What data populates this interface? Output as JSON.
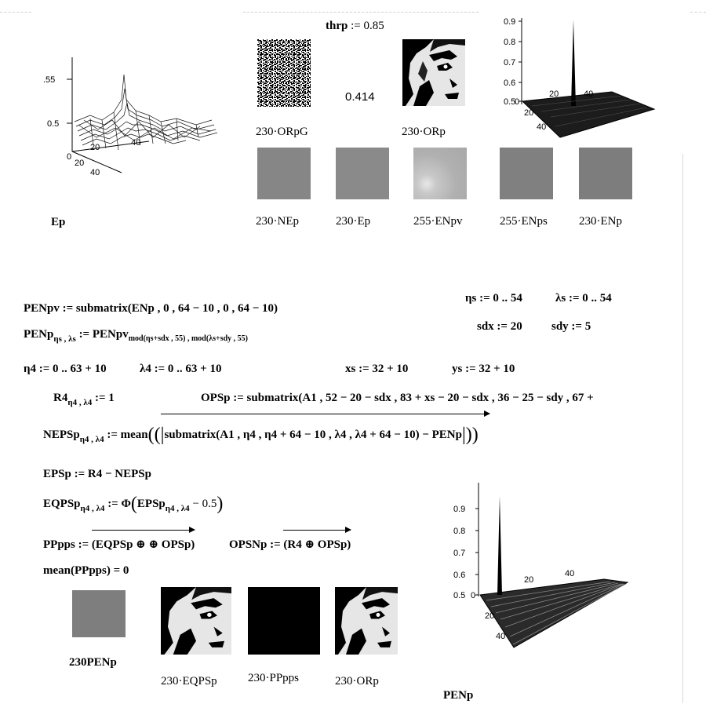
{
  "header": {
    "thrp_label": "thrp",
    "assign": ":=",
    "thrp_value": "0.85",
    "correlation_value": "0.414"
  },
  "plots": {
    "ep_ticks": {
      "y_top": ".55",
      "y_mid": "0.5",
      "x1": "0",
      "x2": "20",
      "x3": "40",
      "x4": "20",
      "x5": "40"
    },
    "orp_ticks": [
      "0.9",
      "0.8",
      "0.7",
      "0.6",
      "0.5",
      "0",
      "20",
      "40",
      "20",
      "40"
    ],
    "penp_ticks": [
      "0.9",
      "0.8",
      "0.7",
      "0.6",
      "0.5",
      "0",
      "20",
      "40",
      "20",
      "40"
    ]
  },
  "image_labels": {
    "orpg": "230·ORpG",
    "orp_top": "230·ORp",
    "ep_plot": "Ep",
    "nep": "230·NEp",
    "ep": "230·Ep",
    "enpv": "255·ENpv",
    "enps": "255·ENps",
    "enp": "230·ENp",
    "penp_small": "230PENp",
    "eqpsp": "230·EQPSp",
    "pppps": "230·PPpps",
    "orp_bottom": "230·ORp",
    "penp_plot": "PENp"
  },
  "equations": {
    "penpv": "PENpv := submatrix(ENp , 0 , 64 − 10 , 0 , 64 − 10)",
    "penp_lhs": "PENp",
    "penp_lhs_sub": "ηs , λs",
    "penp_rhs": ":= PENpv",
    "penp_rhs_sub": "mod(ηs+sdx , 55) , mod(λs+sdy , 55)",
    "eta_range": "ηs := 0 .. 54",
    "lambda_range": "λs := 0 .. 54",
    "sdx": "sdx := 20",
    "sdy": "sdy := 5",
    "eta4": "η4 := 0 .. 63 + 10",
    "lambda4": "λ4 := 0 .. 63 + 10",
    "xs": "xs := 32 + 10",
    "ys": "ys := 32 + 10",
    "r4_lhs": "R4",
    "r4_sub": "η4 , λ4",
    "r4_rhs": ":= 1",
    "opsp": "OPSp := submatrix(A1 , 52 − 20 − sdx , 83 + xs − 20 − sdx , 36 − 25 − sdy , 67 +",
    "nepsp_lhs": "NEPSp",
    "nepsp_sub": "η4 , λ4",
    "nepsp_rhs": ":= mean",
    "nepsp_inner": "submatrix(A1 , η4 , η4 + 64 − 10 , λ4 , λ4 + 64 − 10) − PENp",
    "epsp": "EPSp := R4 − NEPSp",
    "eqpsp_lhs": "EQPSp",
    "eqpsp_sub": "η4 , λ4",
    "eqpsp_rhs": ":= Φ",
    "eqpsp_inner": "EPSp",
    "eqpsp_inner_sub": "η4 , λ4",
    "eqpsp_tail": "− 0.5",
    "pppps_lhs": "PPpps :=",
    "pppps_rhs": "(EQPSp ⊕ ⊕ OPSp)",
    "opsnp_lhs": "OPSNp :=",
    "opsnp_rhs": "(R4 ⊕ OPSp)",
    "mean_eq": "mean(PPpps) = 0"
  }
}
